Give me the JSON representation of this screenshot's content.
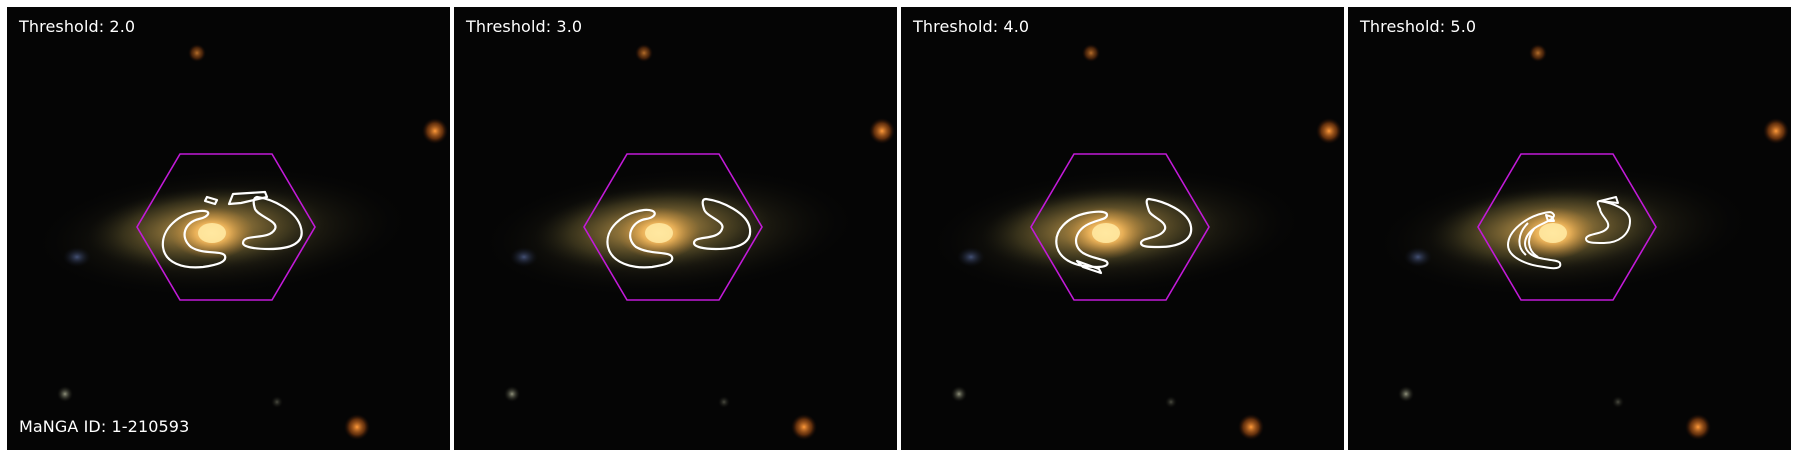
{
  "figure": {
    "manga_id_label": "MaNGA ID: 1-210593",
    "panels": [
      {
        "threshold_label": "Threshold: 2.0"
      },
      {
        "threshold_label": "Threshold: 3.0"
      },
      {
        "threshold_label": "Threshold: 4.0"
      },
      {
        "threshold_label": "Threshold: 5.0"
      }
    ]
  },
  "colors": {
    "hexagon": "#c21ad8",
    "contour": "#ffffff",
    "galaxy_core": "#ffd27a",
    "background": "#050505"
  }
}
